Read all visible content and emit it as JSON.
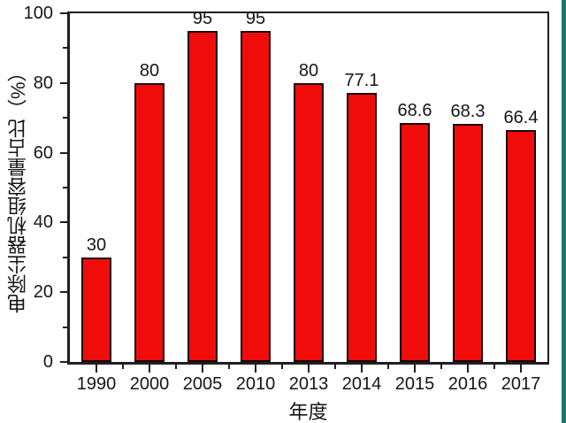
{
  "figure": {
    "background": "#ffffff",
    "accent_stripe_color": "#147a6e"
  },
  "chart_data": {
    "type": "bar",
    "title": "",
    "categories": [
      "1990",
      "2000",
      "2005",
      "2010",
      "2013",
      "2014",
      "2015",
      "2016",
      "2017"
    ],
    "values": [
      30,
      80,
      95,
      95,
      80,
      77.1,
      68.6,
      68.3,
      66.4
    ],
    "value_labels": [
      "30",
      "80",
      "95",
      "95",
      "80",
      "77.1",
      "68.6",
      "68.3",
      "66.4"
    ],
    "xlabel": "年度",
    "ylabel": "电除尘器机组容量占比（%）",
    "ylim": [
      0,
      100
    ],
    "yticks": [
      0,
      20,
      40,
      60,
      80,
      100
    ],
    "minor_yticks": [
      10,
      30,
      50,
      70,
      90
    ],
    "ytick_labels": [
      "0",
      "20",
      "40",
      "60",
      "80",
      "100"
    ],
    "grid": false,
    "legend": "none",
    "bar_color": "#f10c0c",
    "bar_border_color": "#1a0404",
    "axis_color": "#1f1f1f",
    "text_color": "#161616"
  }
}
